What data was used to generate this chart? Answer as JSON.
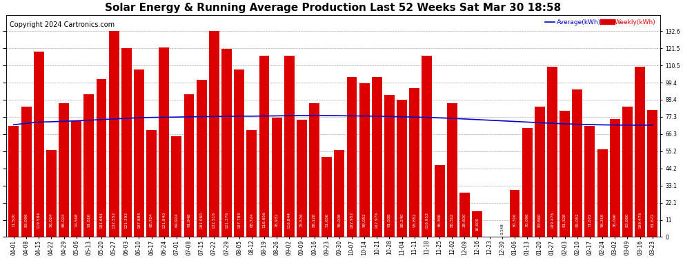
{
  "title": "Solar Energy & Running Average Production Last 52 Weeks Sat Mar 30 18:58",
  "copyright": "Copyright 2024 Cartronics.com",
  "legend_avg": "Average(kWh)",
  "legend_weekly": "Weekly(kWh)",
  "bar_color": "#dd0000",
  "avg_line_color": "#0000cc",
  "background_color": "#ffffff",
  "plot_bg_color": "#ffffff",
  "grid_color": "#aaaaaa",
  "categories": [
    "04-01",
    "04-08",
    "04-15",
    "04-22",
    "04-29",
    "05-06",
    "05-13",
    "05-20",
    "05-27",
    "06-03",
    "06-10",
    "06-17",
    "06-24",
    "07-01",
    "07-08",
    "07-15",
    "07-22",
    "07-29",
    "08-05",
    "08-12",
    "08-19",
    "08-26",
    "09-02",
    "09-09",
    "09-16",
    "09-23",
    "09-30",
    "10-07",
    "10-14",
    "10-21",
    "10-28",
    "11-04",
    "11-11",
    "11-18",
    "11-25",
    "12-02",
    "12-09",
    "12-16",
    "12-23",
    "12-30",
    "01-06",
    "01-13",
    "01-20",
    "01-27",
    "02-03",
    "02-10",
    "02-17",
    "02-24",
    "03-02",
    "03-09",
    "03-16",
    "03-23"
  ],
  "weekly_values": [
    71.5,
    83.996,
    119.584,
    56.024,
    86.024,
    74.568,
    91.816,
    101.664,
    132.552,
    121.392,
    107.884,
    68.724,
    121.84,
    64.924,
    91.948,
    101.06,
    132.516,
    121.376,
    107.784,
    68.724,
    116.656,
    76.932,
    116.844,
    75.576,
    86.128,
    51.656,
    56.008,
    102.952,
    99.052,
    102.976,
    91.588,
    88.24,
    95.852,
    116.952,
    46.366,
    86.312,
    28.6,
    16.6,
    0.0,
    0.148,
    30.316,
    70.096,
    83.86,
    109.476,
    81.328,
    95.052,
    71.672,
    56.316,
    76.096,
    83.86,
    109.476,
    81.672
  ],
  "avg_values": [
    72.3,
    73.2,
    74.0,
    74.2,
    74.5,
    74.8,
    75.2,
    75.6,
    76.0,
    76.4,
    76.8,
    77.0,
    77.1,
    77.2,
    77.4,
    77.5,
    77.6,
    77.7,
    77.8,
    77.8,
    77.9,
    78.0,
    78.1,
    78.2,
    78.2,
    78.2,
    78.1,
    78.0,
    77.9,
    77.8,
    77.6,
    77.4,
    77.2,
    77.0,
    76.7,
    76.4,
    76.0,
    75.6,
    75.2,
    74.8,
    74.4,
    74.0,
    73.6,
    73.2,
    72.9,
    72.6,
    72.4,
    72.2,
    72.1,
    72.0,
    72.0,
    72.1
  ],
  "ylim": [
    0.0,
    143.0
  ],
  "yticks": [
    0.0,
    11.0,
    22.1,
    33.1,
    44.2,
    55.2,
    66.3,
    77.3,
    88.4,
    99.4,
    110.5,
    121.5,
    132.6
  ],
  "title_fontsize": 11,
  "copyright_fontsize": 7,
  "tick_label_fontsize": 5.5,
  "bar_label_fontsize": 4.2
}
